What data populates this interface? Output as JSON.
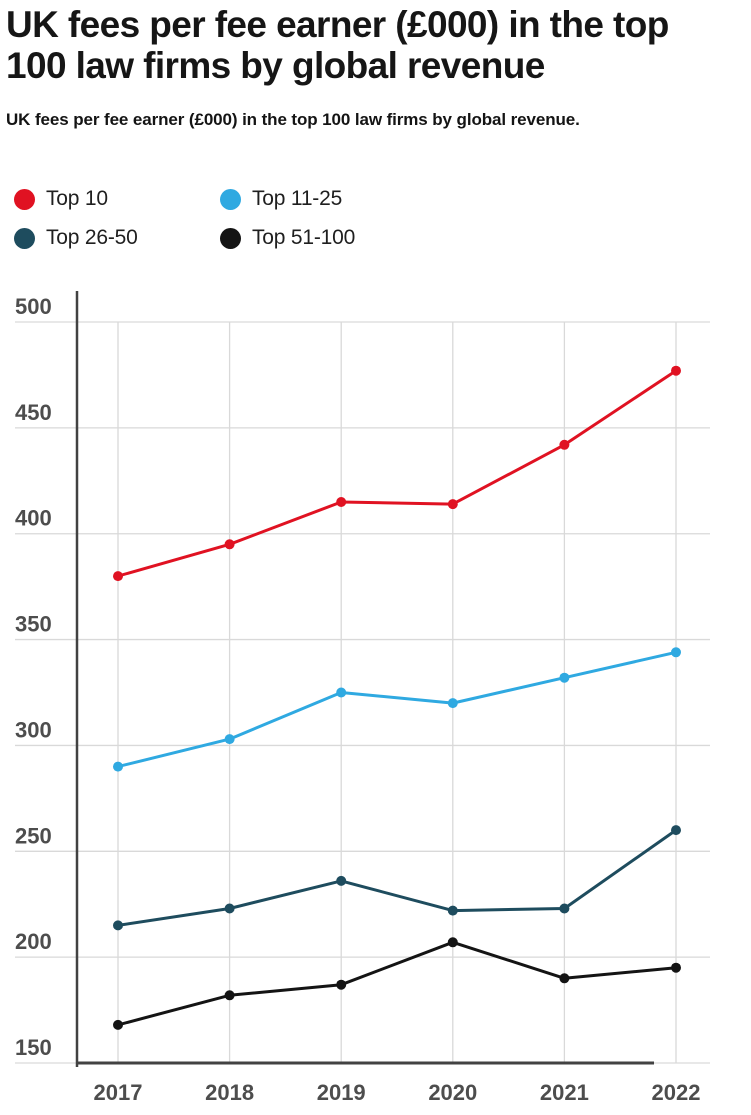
{
  "page": {
    "title_line1": "UK fees per fee earner (£000) in the top",
    "title_line2": "100 law firms by global revenue",
    "subtitle": "UK fees per fee earner (£000) in the top 100 law firms by global revenue."
  },
  "legend": {
    "items": [
      {
        "label": "Top 10",
        "color": "#e01222"
      },
      {
        "label": "Top 11-25",
        "color": "#2fa9e1"
      },
      {
        "label": "Top 26-50",
        "color": "#1e4c5e"
      },
      {
        "label": "Top 51-100",
        "color": "#141414"
      }
    ]
  },
  "chart_data": {
    "type": "line",
    "title": "UK fees per fee earner (£000) in the top 100 law firms by global revenue",
    "x": [
      2017,
      2018,
      2019,
      2020,
      2021,
      2022
    ],
    "x_tick_labels": [
      "2017",
      "2018",
      "2019",
      "2020",
      "2021",
      "2022"
    ],
    "series": [
      {
        "name": "Top 10",
        "color": "#e01222",
        "values": [
          380,
          395,
          415,
          414,
          442,
          477
        ]
      },
      {
        "name": "Top 11-25",
        "color": "#2fa9e1",
        "values": [
          290,
          303,
          325,
          320,
          332,
          344
        ]
      },
      {
        "name": "Top 26-50",
        "color": "#1e4c5e",
        "values": [
          215,
          223,
          236,
          222,
          223,
          260
        ]
      },
      {
        "name": "Top 51-100",
        "color": "#141414",
        "values": [
          168,
          182,
          187,
          207,
          190,
          195
        ]
      }
    ],
    "yticks": [
      150,
      200,
      250,
      300,
      350,
      400,
      450,
      500
    ],
    "y_tick_labels": [
      "150",
      "200",
      "250",
      "300",
      "350",
      "400",
      "450",
      "500"
    ],
    "ylim": [
      150,
      500
    ],
    "xlabel": "",
    "ylabel": "",
    "grid": true,
    "legend_position": "top-left",
    "colors": {
      "grid_line": "#d9d9d9",
      "axis_line": "#424242",
      "tick_label": "#4d4d4d"
    }
  }
}
